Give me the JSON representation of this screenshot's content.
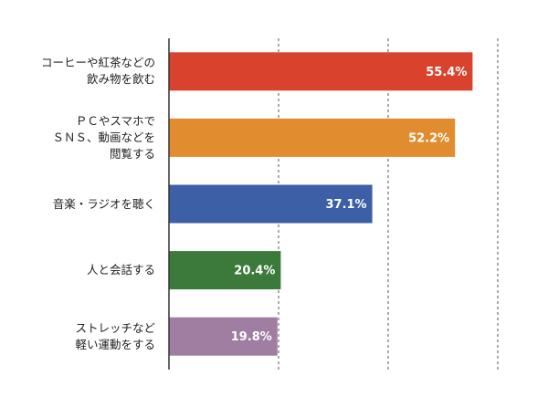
{
  "chart_data": {
    "type": "bar",
    "orientation": "horizontal",
    "categories": [
      "コーヒーや紅茶などの\n飲み物を飲む",
      "ＰＣやスマホで\nＳＮＳ、動画などを\n閲覧する",
      "音楽・ラジオを聴く",
      "人と会話する",
      "ストレッチなど\n軽い運動をする"
    ],
    "values": [
      55.4,
      52.2,
      37.1,
      20.4,
      19.8
    ],
    "value_labels": [
      "55.4%",
      "52.2%",
      "37.1%",
      "20.4%",
      "19.8%"
    ],
    "colors": [
      "#d9432e",
      "#e08c2f",
      "#3d5fa6",
      "#3c7a3c",
      "#a07ea2"
    ],
    "xlim": [
      0,
      60
    ],
    "xticks": [
      20,
      40,
      60
    ],
    "grid": true
  }
}
